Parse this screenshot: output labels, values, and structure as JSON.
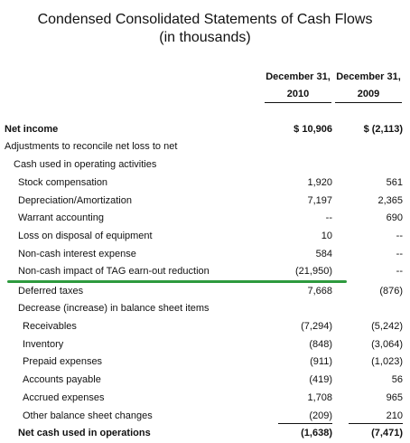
{
  "header": {
    "title": "Condensed Consolidated Statements of Cash Flows",
    "subtitle": "(in thousands)"
  },
  "table": {
    "columns": [
      {
        "heading": "December 31,",
        "year": "2010"
      },
      {
        "heading": "December 31,",
        "year": "2009"
      }
    ],
    "rows": [
      {
        "label": "Net income",
        "values": [
          "$ 10,906",
          "$ (2,113)"
        ]
      },
      {
        "label": "Adjustments to reconcile net loss to net",
        "values": []
      },
      {
        "label": "Cash used in operating activities",
        "values": []
      },
      {
        "label": "Stock compensation",
        "values": [
          "1,920",
          "561"
        ]
      },
      {
        "label": "Depreciation/Amortization",
        "values": [
          "7,197",
          "2,365"
        ]
      },
      {
        "label": "Warrant accounting",
        "values": [
          "--",
          "690"
        ]
      },
      {
        "label": "Loss on disposal of equipment",
        "values": [
          "10",
          "--"
        ]
      },
      {
        "label": "Non-cash interest expense",
        "values": [
          "584",
          "--"
        ]
      },
      {
        "label": "Non-cash impact of TAG earn-out reduction",
        "values": [
          "(21,950)",
          "--"
        ]
      },
      {
        "label": "Deferred taxes",
        "values": [
          "7,668",
          "(876)"
        ]
      },
      {
        "label": "Decrease (increase) in balance sheet items",
        "values": []
      },
      {
        "label": "Receivables",
        "values": [
          "(7,294)",
          "(5,242)"
        ]
      },
      {
        "label": "Inventory",
        "values": [
          "(848)",
          "(3,064)"
        ]
      },
      {
        "label": "Prepaid expenses",
        "values": [
          "(911)",
          "(1,023)"
        ]
      },
      {
        "label": "Accounts payable",
        "values": [
          "(419)",
          "56"
        ]
      },
      {
        "label": "Accrued expenses",
        "values": [
          "1,708",
          "965"
        ]
      },
      {
        "label": "Other balance sheet changes",
        "values": [
          "(209)",
          "210"
        ]
      },
      {
        "label": "Net cash used in operations",
        "values": [
          "(1,638)",
          "(7,471)"
        ]
      }
    ]
  }
}
